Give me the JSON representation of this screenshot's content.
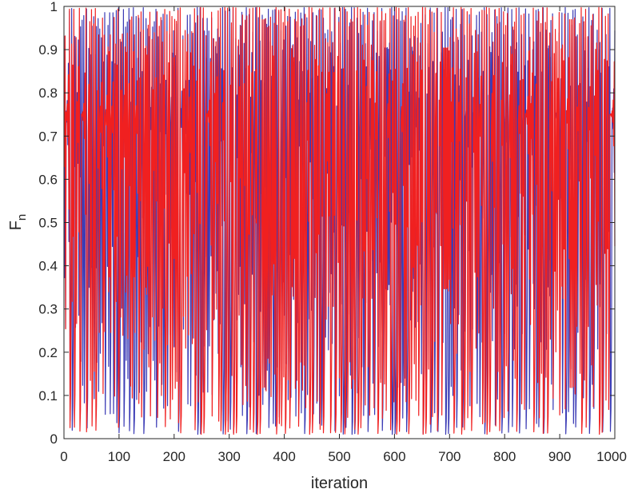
{
  "chart_data": {
    "type": "line",
    "title": "",
    "xlabel": "iteration",
    "ylabel_main": "F",
    "ylabel_sub": "n",
    "xlim": [
      0,
      1000
    ],
    "ylim": [
      0,
      1
    ],
    "x_ticks": [
      "0",
      "100",
      "200",
      "300",
      "400",
      "500",
      "600",
      "700",
      "800",
      "900",
      "1000"
    ],
    "y_ticks": [
      "0",
      "0.1",
      "0.2",
      "0.3",
      "0.4",
      "0.5",
      "0.6",
      "0.7",
      "0.8",
      "0.9",
      "1"
    ],
    "grid": false,
    "legend": "none",
    "series": [
      {
        "color": "#3b3bb5",
        "n_points": 1000,
        "generator": "logistic map, r = 3.99, x0 = 0.3713"
      },
      {
        "color": "#f02020",
        "n_points": 1000,
        "generator": "logistic map, r = 3.99, x0 = 0.6284"
      }
    ]
  }
}
